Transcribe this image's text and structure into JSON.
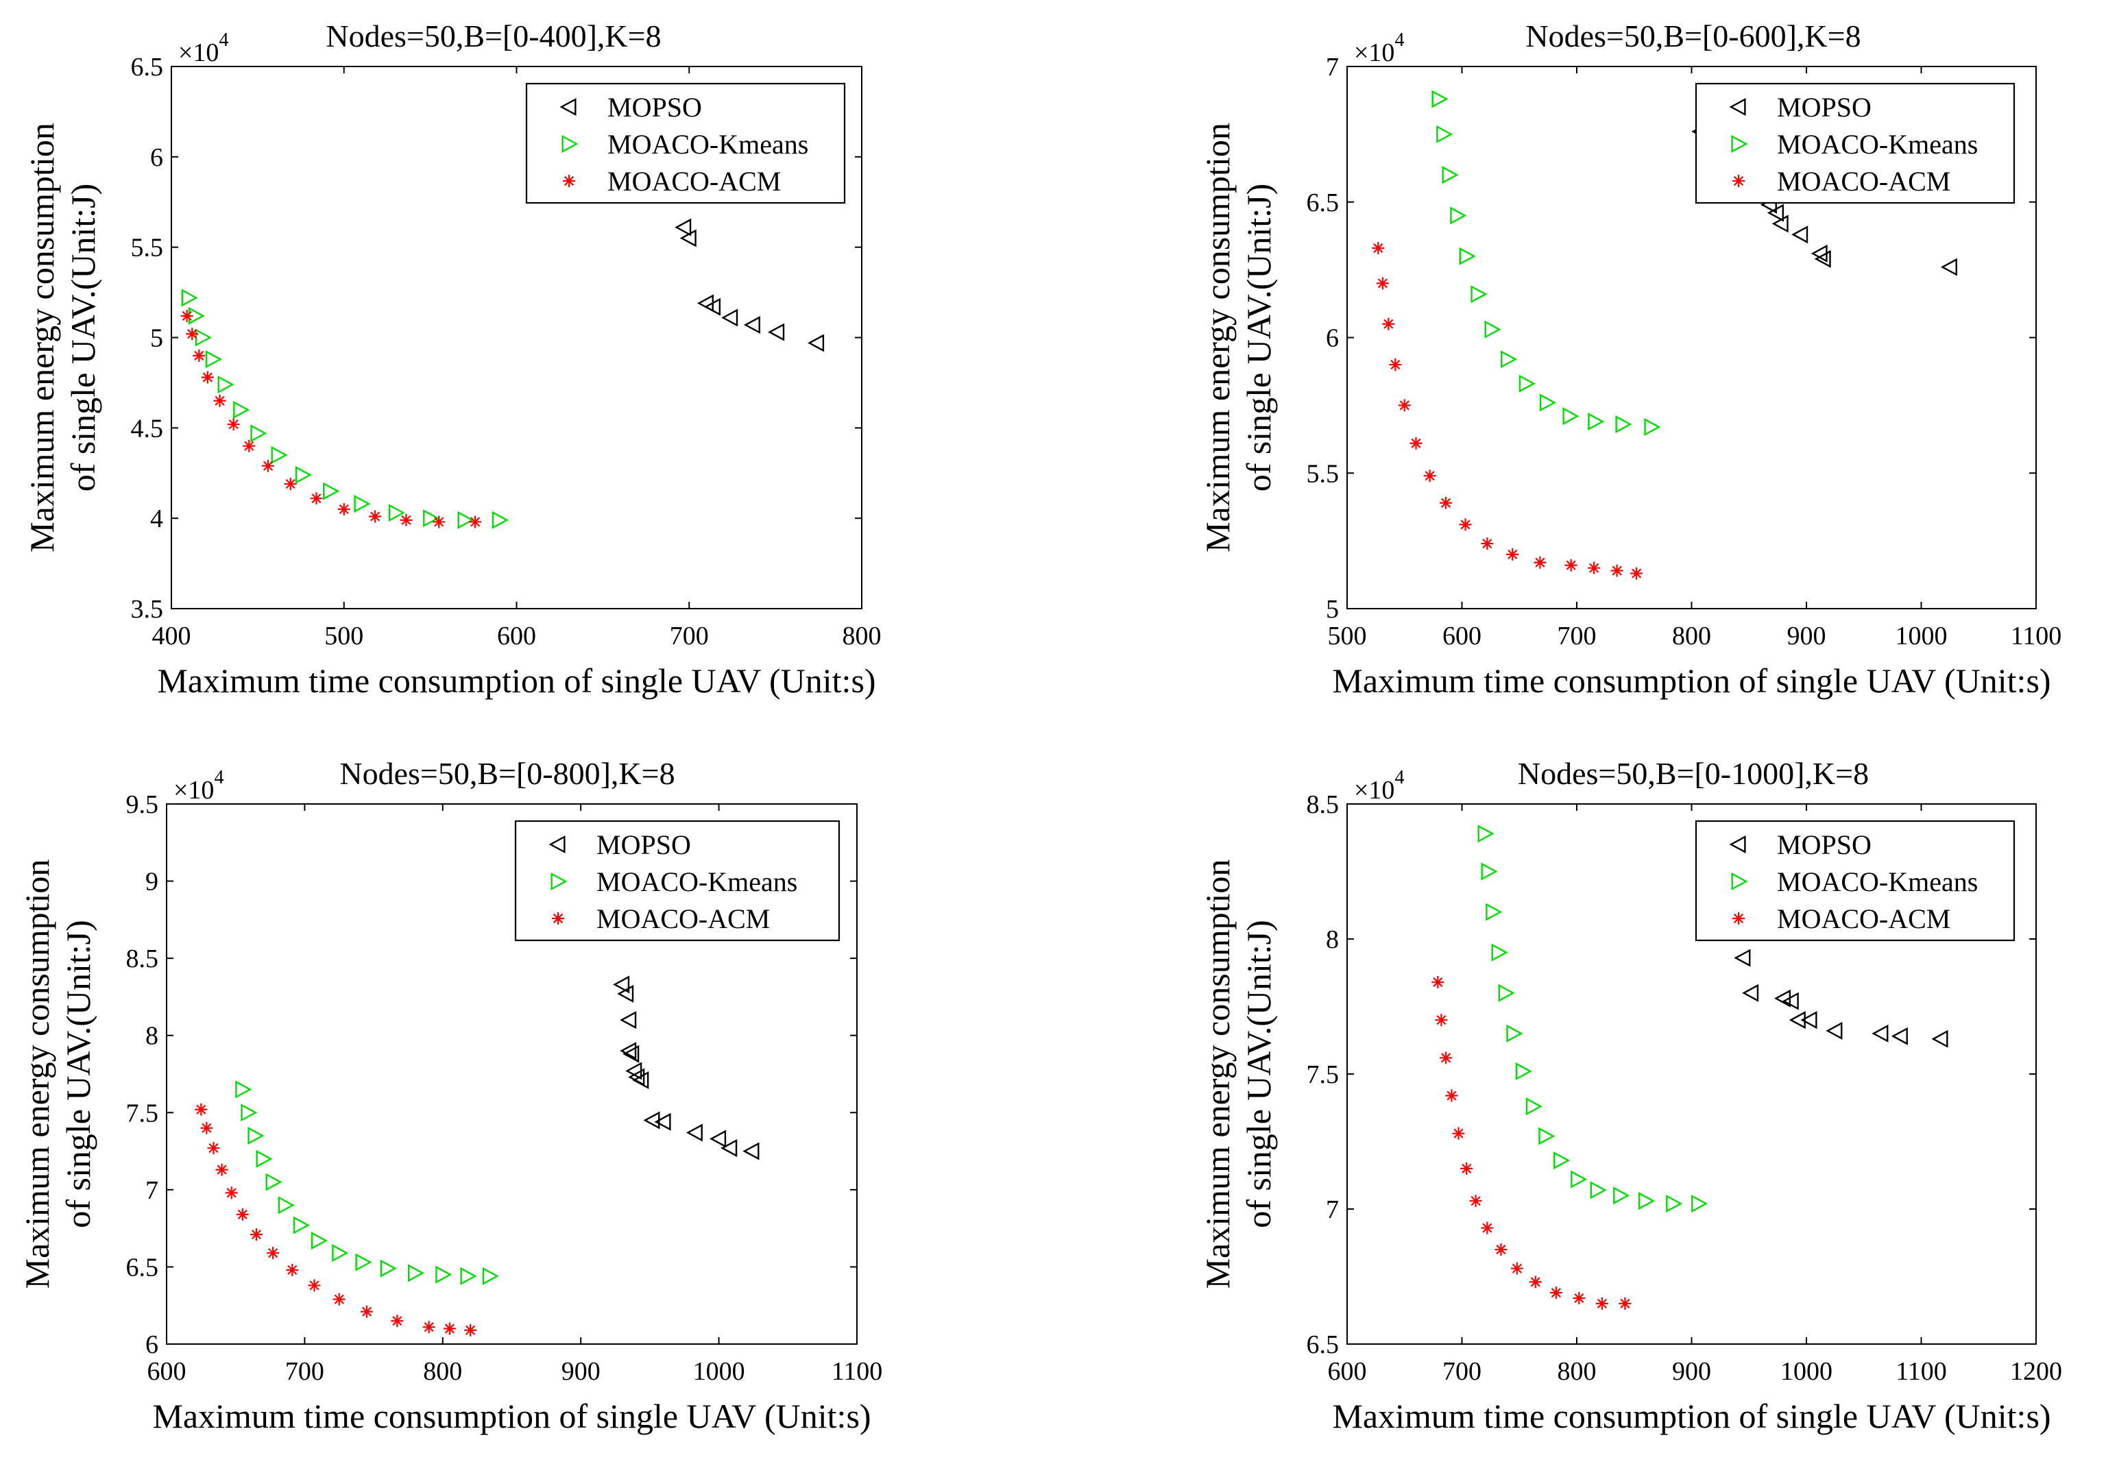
{
  "chart_data": [
    {
      "type": "scatter",
      "title": "Nodes=50,B=[0-400],K=8",
      "xlabel": "Maximum time consumption of single UAV (Unit:s)",
      "ylabel_line1": "Maximum energy consumption",
      "ylabel_line2": "of single UAV.(Unit:J)",
      "exponent_label": "×10",
      "exponent": "4",
      "xlim": [
        400,
        800
      ],
      "ylim": [
        3.5,
        6.5
      ],
      "xticks": [
        "400",
        "500",
        "600",
        "700",
        "800"
      ],
      "yticks": [
        "3.5",
        "4",
        "4.5",
        "5",
        "5.5",
        "6",
        "6.5"
      ],
      "legend_position": "top-right",
      "series": [
        {
          "name": "MOPSO",
          "marker": "triangle-left",
          "color": "#000000",
          "x": [
            697,
            700,
            710,
            714,
            724,
            737,
            751,
            774
          ],
          "y": [
            5.61,
            5.55,
            5.19,
            5.17,
            5.11,
            5.07,
            5.03,
            4.97
          ]
        },
        {
          "name": "MOACO-Kmeans",
          "marker": "triangle-right",
          "color": "#00dd00",
          "x": [
            410,
            414,
            418,
            424,
            431,
            440,
            450,
            462,
            476,
            492,
            510,
            530,
            550,
            570,
            590
          ],
          "y": [
            5.22,
            5.12,
            5.0,
            4.88,
            4.74,
            4.6,
            4.47,
            4.35,
            4.24,
            4.15,
            4.08,
            4.03,
            4.0,
            3.99,
            3.99
          ]
        },
        {
          "name": "MOACO-ACM",
          "marker": "asterisk",
          "color": "#ff0000",
          "x": [
            409,
            412,
            416,
            421,
            428,
            436,
            445,
            456,
            469,
            484,
            500,
            518,
            536,
            555,
            576
          ],
          "y": [
            5.12,
            5.02,
            4.9,
            4.78,
            4.65,
            4.52,
            4.4,
            4.29,
            4.19,
            4.11,
            4.05,
            4.01,
            3.99,
            3.98,
            3.98
          ]
        }
      ]
    },
    {
      "type": "scatter",
      "title": "Nodes=50,B=[0-600],K=8",
      "xlabel": "Maximum time consumption of single UAV (Unit:s)",
      "ylabel_line1": "Maximum energy consumption",
      "ylabel_line2": "of single UAV.(Unit:J)",
      "exponent_label": "×10",
      "exponent": "4",
      "xlim": [
        500,
        1100
      ],
      "ylim": [
        5,
        7
      ],
      "xticks": [
        "500",
        "600",
        "700",
        "800",
        "900",
        "1000",
        "1100"
      ],
      "yticks": [
        "5",
        "5.5",
        "6",
        "6.5",
        "7"
      ],
      "legend_position": "top-right",
      "series": [
        {
          "name": "MOPSO",
          "marker": "triangle-left",
          "color": "#000000",
          "x": [
            808,
            860,
            868,
            874,
            878,
            895,
            912,
            915,
            1025
          ],
          "y": [
            6.76,
            6.55,
            6.49,
            6.46,
            6.42,
            6.38,
            6.31,
            6.29,
            6.26
          ]
        },
        {
          "name": "MOACO-Kmeans",
          "marker": "triangle-right",
          "color": "#00dd00",
          "x": [
            580,
            584,
            589,
            596,
            604,
            614,
            626,
            640,
            656,
            674,
            694,
            716,
            740,
            765
          ],
          "y": [
            6.88,
            6.75,
            6.6,
            6.45,
            6.3,
            6.16,
            6.03,
            5.92,
            5.83,
            5.76,
            5.71,
            5.69,
            5.68,
            5.67
          ]
        },
        {
          "name": "MOACO-ACM",
          "marker": "asterisk",
          "color": "#ff0000",
          "x": [
            527,
            531,
            536,
            542,
            550,
            560,
            572,
            586,
            603,
            622,
            644,
            668,
            695,
            715,
            735,
            752
          ],
          "y": [
            6.33,
            6.2,
            6.05,
            5.9,
            5.75,
            5.61,
            5.49,
            5.39,
            5.31,
            5.24,
            5.2,
            5.17,
            5.16,
            5.15,
            5.14,
            5.13
          ]
        }
      ]
    },
    {
      "type": "scatter",
      "title": "Nodes=50,B=[0-800],K=8",
      "xlabel": "Maximum time consumption of single UAV (Unit:s)",
      "ylabel_line1": "Maximum energy consumption",
      "ylabel_line2": "of single UAV.(Unit:J)",
      "exponent_label": "×10",
      "exponent": "4",
      "xlim": [
        600,
        1100
      ],
      "ylim": [
        6,
        9.5
      ],
      "xticks": [
        "600",
        "700",
        "800",
        "900",
        "1000",
        "1100"
      ],
      "yticks": [
        "6",
        "6.5",
        "7",
        "7.5",
        "8",
        "8.5",
        "9",
        "9.5"
      ],
      "legend_position": "top-right",
      "series": [
        {
          "name": "MOPSO",
          "marker": "triangle-left",
          "color": "#000000",
          "x": [
            930,
            933,
            935,
            935,
            937,
            939,
            941,
            944,
            952,
            960,
            983,
            1000,
            1008,
            1024
          ],
          "y": [
            8.33,
            8.27,
            8.1,
            7.9,
            7.88,
            7.77,
            7.73,
            7.71,
            7.45,
            7.44,
            7.37,
            7.33,
            7.27,
            7.25
          ]
        },
        {
          "name": "MOACO-Kmeans",
          "marker": "triangle-right",
          "color": "#00dd00",
          "x": [
            655,
            659,
            664,
            670,
            677,
            686,
            697,
            710,
            725,
            742,
            760,
            780,
            800,
            818,
            834
          ],
          "y": [
            7.65,
            7.5,
            7.35,
            7.2,
            7.05,
            6.9,
            6.77,
            6.67,
            6.59,
            6.53,
            6.49,
            6.46,
            6.45,
            6.44,
            6.44
          ]
        },
        {
          "name": "MOACO-ACM",
          "marker": "asterisk",
          "color": "#ff0000",
          "x": [
            625,
            629,
            634,
            640,
            647,
            655,
            665,
            677,
            691,
            707,
            725,
            745,
            767,
            790,
            805,
            820
          ],
          "y": [
            7.52,
            7.4,
            7.27,
            7.13,
            6.98,
            6.84,
            6.71,
            6.59,
            6.48,
            6.38,
            6.29,
            6.21,
            6.15,
            6.11,
            6.1,
            6.09
          ]
        }
      ]
    },
    {
      "type": "scatter",
      "title": "Nodes=50,B=[0-1000],K=8",
      "xlabel": "Maximum time consumption of single UAV (Unit:s)",
      "ylabel_line1": "Maximum energy consumption",
      "ylabel_line2": "of single UAV.(Unit:J)",
      "exponent_label": "×10",
      "exponent": "4",
      "xlim": [
        600,
        1200
      ],
      "ylim": [
        6.5,
        8.5
      ],
      "xticks": [
        "600",
        "700",
        "800",
        "900",
        "1000",
        "1100",
        "1200"
      ],
      "yticks": [
        "6.5",
        "7",
        "7.5",
        "8",
        "8.5"
      ],
      "legend_position": "top-right",
      "series": [
        {
          "name": "MOPSO",
          "marker": "triangle-left",
          "color": "#000000",
          "x": [
            945,
            952,
            980,
            987,
            993,
            1003,
            1025,
            1065,
            1082,
            1117
          ],
          "y": [
            7.93,
            7.8,
            7.78,
            7.77,
            7.7,
            7.7,
            7.66,
            7.65,
            7.64,
            7.63
          ]
        },
        {
          "name": "MOACO-Kmeans",
          "marker": "triangle-right",
          "color": "#00dd00",
          "x": [
            720,
            723,
            727,
            732,
            738,
            745,
            753,
            762,
            773,
            786,
            801,
            818,
            838,
            860,
            884,
            906
          ],
          "y": [
            8.39,
            8.25,
            8.1,
            7.95,
            7.8,
            7.65,
            7.51,
            7.38,
            7.27,
            7.18,
            7.11,
            7.07,
            7.05,
            7.03,
            7.02,
            7.02
          ]
        },
        {
          "name": "MOACO-ACM",
          "marker": "asterisk",
          "color": "#ff0000",
          "x": [
            679,
            682,
            686,
            691,
            697,
            704,
            712,
            722,
            734,
            748,
            764,
            782,
            802,
            822,
            842
          ],
          "y": [
            7.84,
            7.7,
            7.56,
            7.42,
            7.28,
            7.15,
            7.03,
            6.93,
            6.85,
            6.78,
            6.73,
            6.69,
            6.67,
            6.65,
            6.65
          ]
        }
      ]
    }
  ]
}
